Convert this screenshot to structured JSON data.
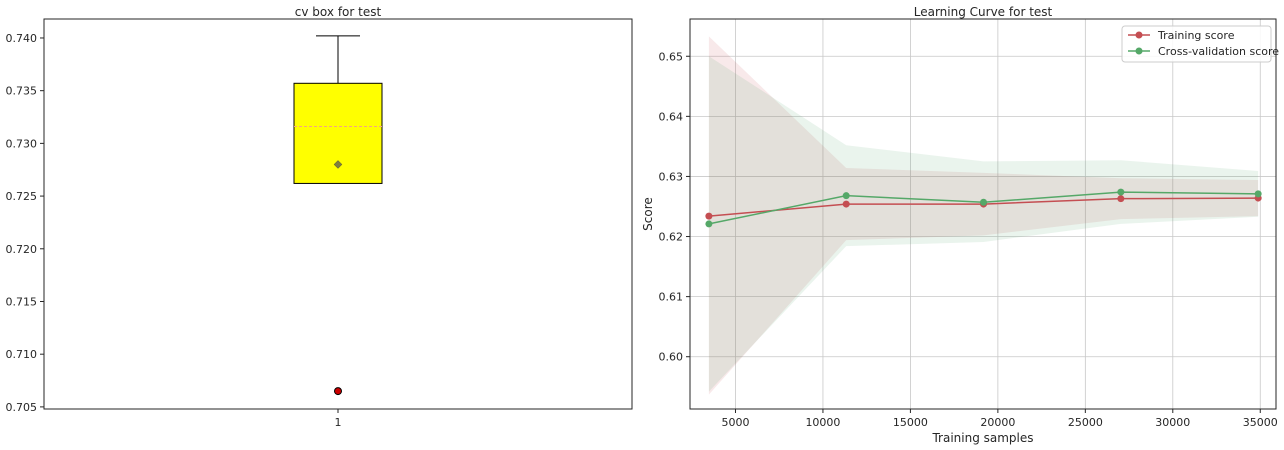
{
  "chart_data": [
    {
      "type": "box",
      "title": "cv box for test",
      "xlabel": "",
      "ylabel": "",
      "categories": [
        "1"
      ],
      "ylim": [
        0.7048,
        0.7418
      ],
      "yticks": [
        0.705,
        0.71,
        0.715,
        0.72,
        0.725,
        0.73,
        0.735,
        0.74
      ],
      "ytick_labels": [
        "0.705",
        "0.710",
        "0.715",
        "0.720",
        "0.725",
        "0.730",
        "0.735",
        "0.740"
      ],
      "box": {
        "q1": 0.7262,
        "median": 0.7316,
        "q3": 0.7357,
        "whisker_low": 0.7262,
        "whisker_high": 0.7402,
        "mean": 0.728,
        "outliers": [
          0.7065
        ]
      },
      "colors": {
        "box_fill": "#ffff00",
        "median": "#f4a582",
        "mean": "#7f7f3f",
        "outlier": "#cc0000"
      }
    },
    {
      "type": "line",
      "title": "Learning Curve for test",
      "xlabel": "Training samples",
      "ylabel": "Score",
      "xlim": [
        2400,
        35900
      ],
      "ylim": [
        0.5913,
        0.6562
      ],
      "xticks": [
        5000,
        10000,
        15000,
        20000,
        25000,
        30000,
        35000
      ],
      "xtick_labels": [
        "5000",
        "10000",
        "15000",
        "20000",
        "25000",
        "30000",
        "35000"
      ],
      "yticks": [
        0.6,
        0.61,
        0.62,
        0.63,
        0.64,
        0.65
      ],
      "ytick_labels": [
        "0.60",
        "0.61",
        "0.62",
        "0.63",
        "0.64",
        "0.65"
      ],
      "grid": true,
      "legend_position": "top-right",
      "x": [
        3480,
        11330,
        19180,
        27030,
        34880
      ],
      "series": [
        {
          "name": "Training score",
          "color": "#c44e52",
          "values": [
            0.6234,
            0.6254,
            0.6254,
            0.6263,
            0.6264
          ],
          "band_low": [
            0.5937,
            0.6194,
            0.6202,
            0.6229,
            0.6234
          ],
          "band_high": [
            0.6533,
            0.6314,
            0.6306,
            0.6297,
            0.6294
          ]
        },
        {
          "name": "Cross-validation score",
          "color": "#55a868",
          "values": [
            0.6221,
            0.6268,
            0.6257,
            0.6274,
            0.6271
          ],
          "band_low": [
            0.5942,
            0.6184,
            0.6191,
            0.6221,
            0.6233
          ],
          "band_high": [
            0.65,
            0.6352,
            0.6325,
            0.6327,
            0.6309
          ]
        }
      ]
    }
  ]
}
